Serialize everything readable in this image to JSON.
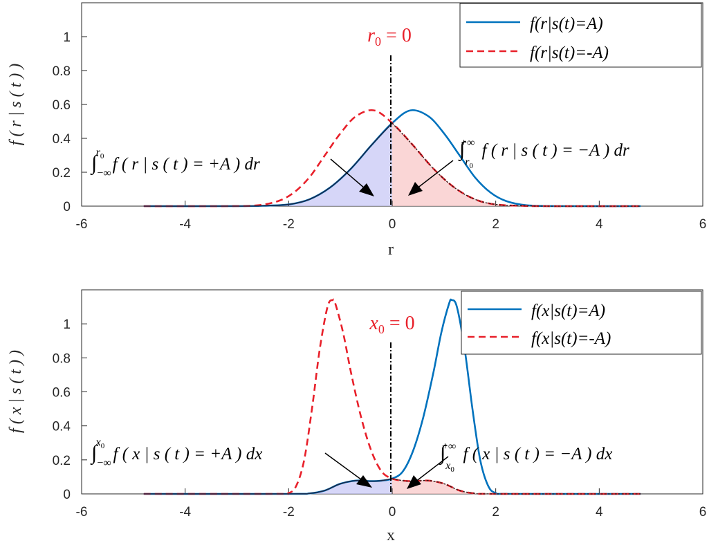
{
  "chart_data": [
    {
      "type": "line",
      "xlabel": "r",
      "ylabel": "f(r|s(t))",
      "xlim": [
        -6,
        6
      ],
      "ylim": [
        0,
        1.2
      ],
      "xticks": [
        "-6",
        "-4",
        "-2",
        "0",
        "2",
        "4",
        "6"
      ],
      "yticks": [
        "0",
        "0.2",
        "0.4",
        "0.6",
        "0.8",
        "1"
      ],
      "threshold_label": "r0 = 0",
      "threshold_x": 0,
      "left_annotation": "∫_{-∞}^{r0} f(r|s(t)=+A) dr",
      "right_annotation": "∫_{r0}^{+∞} f(r|s(t)=-A) dr",
      "legend_position": "top-right",
      "series": [
        {
          "name": "f(r|s(t)=A)",
          "color": "#0072bd",
          "style": "solid",
          "points": [
            [
              -4.8,
              0
            ],
            [
              -3,
              0
            ],
            [
              -2.5,
              0.002
            ],
            [
              -2,
              0.01
            ],
            [
              -1.6,
              0.04
            ],
            [
              -1.2,
              0.11
            ],
            [
              -0.8,
              0.22
            ],
            [
              -0.4,
              0.36
            ],
            [
              0,
              0.49
            ],
            [
              0.35,
              0.565
            ],
            [
              0.7,
              0.53
            ],
            [
              1.0,
              0.43
            ],
            [
              1.3,
              0.3
            ],
            [
              1.6,
              0.17
            ],
            [
              1.9,
              0.08
            ],
            [
              2.2,
              0.03
            ],
            [
              2.6,
              0.005
            ],
            [
              3.2,
              0
            ],
            [
              4.8,
              0
            ]
          ]
        },
        {
          "name": "f(r|s(t)=-A)",
          "color": "#e8202a",
          "style": "dashed",
          "points": [
            [
              -4.8,
              0
            ],
            [
              -3.2,
              0
            ],
            [
              -2.6,
              0.005
            ],
            [
              -2.2,
              0.03
            ],
            [
              -1.9,
              0.08
            ],
            [
              -1.6,
              0.17
            ],
            [
              -1.3,
              0.3
            ],
            [
              -1.0,
              0.43
            ],
            [
              -0.7,
              0.53
            ],
            [
              -0.35,
              0.565
            ],
            [
              0,
              0.49
            ],
            [
              0.4,
              0.36
            ],
            [
              0.8,
              0.22
            ],
            [
              1.2,
              0.11
            ],
            [
              1.6,
              0.04
            ],
            [
              2,
              0.01
            ],
            [
              2.5,
              0.002
            ],
            [
              3,
              0
            ],
            [
              4.8,
              0
            ]
          ]
        }
      ]
    },
    {
      "type": "line",
      "xlabel": "x",
      "ylabel": "f(x|s(t))",
      "xlim": [
        -6,
        6
      ],
      "ylim": [
        0,
        1.2
      ],
      "xticks": [
        "-6",
        "-4",
        "-2",
        "0",
        "2",
        "4",
        "6"
      ],
      "yticks": [
        "0",
        "0.2",
        "0.4",
        "0.6",
        "0.8",
        "1"
      ],
      "threshold_label": "x0 = 0",
      "threshold_x": 0,
      "left_annotation": "∫_{-∞}^{x0} f(x|s(t)=+A) dx",
      "right_annotation": "∫_{x0}^{+∞} f(x|s(t)=-A) dx",
      "legend_position": "top-right",
      "series": [
        {
          "name": "f(x|s(t)=A)",
          "color": "#0072bd",
          "style": "solid",
          "points": [
            [
              -4.8,
              0
            ],
            [
              -2,
              0
            ],
            [
              -1.6,
              0.003
            ],
            [
              -1.3,
              0.02
            ],
            [
              -1.0,
              0.06
            ],
            [
              -0.7,
              0.078
            ],
            [
              -0.4,
              0.075
            ],
            [
              -0.2,
              0.078
            ],
            [
              0,
              0.09
            ],
            [
              0.2,
              0.13
            ],
            [
              0.4,
              0.25
            ],
            [
              0.6,
              0.45
            ],
            [
              0.8,
              0.72
            ],
            [
              0.95,
              0.95
            ],
            [
              1.1,
              1.12
            ],
            [
              1.15,
              1.14
            ],
            [
              1.25,
              1.1
            ],
            [
              1.4,
              0.85
            ],
            [
              1.55,
              0.5
            ],
            [
              1.7,
              0.2
            ],
            [
              1.85,
              0.05
            ],
            [
              2.0,
              0.005
            ],
            [
              2.3,
              0
            ],
            [
              4.8,
              0
            ]
          ]
        },
        {
          "name": "f(x|s(t)=-A)",
          "color": "#e8202a",
          "style": "dashed",
          "points": [
            [
              -4.8,
              0
            ],
            [
              -2.3,
              0
            ],
            [
              -2.0,
              0.005
            ],
            [
              -1.85,
              0.05
            ],
            [
              -1.7,
              0.2
            ],
            [
              -1.55,
              0.5
            ],
            [
              -1.4,
              0.85
            ],
            [
              -1.25,
              1.1
            ],
            [
              -1.15,
              1.14
            ],
            [
              -1.1,
              1.12
            ],
            [
              -0.95,
              0.95
            ],
            [
              -0.8,
              0.72
            ],
            [
              -0.6,
              0.45
            ],
            [
              -0.4,
              0.25
            ],
            [
              -0.2,
              0.13
            ],
            [
              0,
              0.09
            ],
            [
              0.2,
              0.078
            ],
            [
              0.4,
              0.075
            ],
            [
              0.7,
              0.078
            ],
            [
              1.0,
              0.06
            ],
            [
              1.3,
              0.02
            ],
            [
              1.6,
              0.003
            ],
            [
              2,
              0
            ],
            [
              4.8,
              0
            ]
          ]
        }
      ]
    }
  ]
}
